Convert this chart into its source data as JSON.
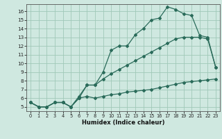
{
  "xlabel": "Humidex (Indice chaleur)",
  "xlim": [
    -0.5,
    23.5
  ],
  "ylim": [
    4.5,
    16.8
  ],
  "xticks": [
    0,
    1,
    2,
    3,
    4,
    5,
    6,
    7,
    8,
    9,
    10,
    11,
    12,
    13,
    14,
    15,
    16,
    17,
    18,
    19,
    20,
    21,
    22,
    23
  ],
  "yticks": [
    5,
    6,
    7,
    8,
    9,
    10,
    11,
    12,
    13,
    14,
    15,
    16
  ],
  "background_color": "#cfe8e0",
  "grid_color": "#a0c8b8",
  "line_color": "#2a6b5a",
  "lines": [
    {
      "x": [
        0,
        1,
        2,
        3,
        4,
        5,
        6,
        7,
        8,
        9,
        10,
        11,
        12,
        13,
        14,
        15,
        16,
        17,
        18,
        19,
        20,
        21,
        22,
        23
      ],
      "y": [
        5.5,
        5.0,
        5.0,
        5.5,
        5.5,
        5.0,
        6.0,
        7.5,
        7.5,
        9.0,
        11.5,
        12.0,
        12.0,
        13.3,
        14.0,
        15.0,
        15.2,
        16.5,
        16.2,
        15.7,
        15.5,
        13.2,
        13.0,
        9.5
      ]
    },
    {
      "x": [
        0,
        1,
        2,
        3,
        4,
        5,
        6,
        7,
        8,
        9,
        10,
        11,
        12,
        13,
        14,
        15,
        16,
        17,
        18,
        19,
        20,
        21,
        22,
        23
      ],
      "y": [
        5.5,
        5.0,
        5.0,
        5.5,
        5.5,
        5.0,
        6.2,
        7.5,
        7.5,
        8.2,
        8.8,
        9.3,
        9.8,
        10.3,
        10.8,
        11.3,
        11.8,
        12.3,
        12.8,
        13.0,
        13.0,
        13.0,
        12.8,
        9.5
      ]
    },
    {
      "x": [
        0,
        1,
        2,
        3,
        4,
        5,
        6,
        7,
        8,
        9,
        10,
        11,
        12,
        13,
        14,
        15,
        16,
        17,
        18,
        19,
        20,
        21,
        22,
        23
      ],
      "y": [
        5.5,
        5.0,
        5.0,
        5.5,
        5.5,
        5.0,
        6.0,
        6.2,
        6.0,
        6.2,
        6.4,
        6.5,
        6.7,
        6.8,
        6.9,
        7.0,
        7.2,
        7.4,
        7.6,
        7.8,
        7.9,
        8.0,
        8.1,
        8.2
      ]
    }
  ]
}
